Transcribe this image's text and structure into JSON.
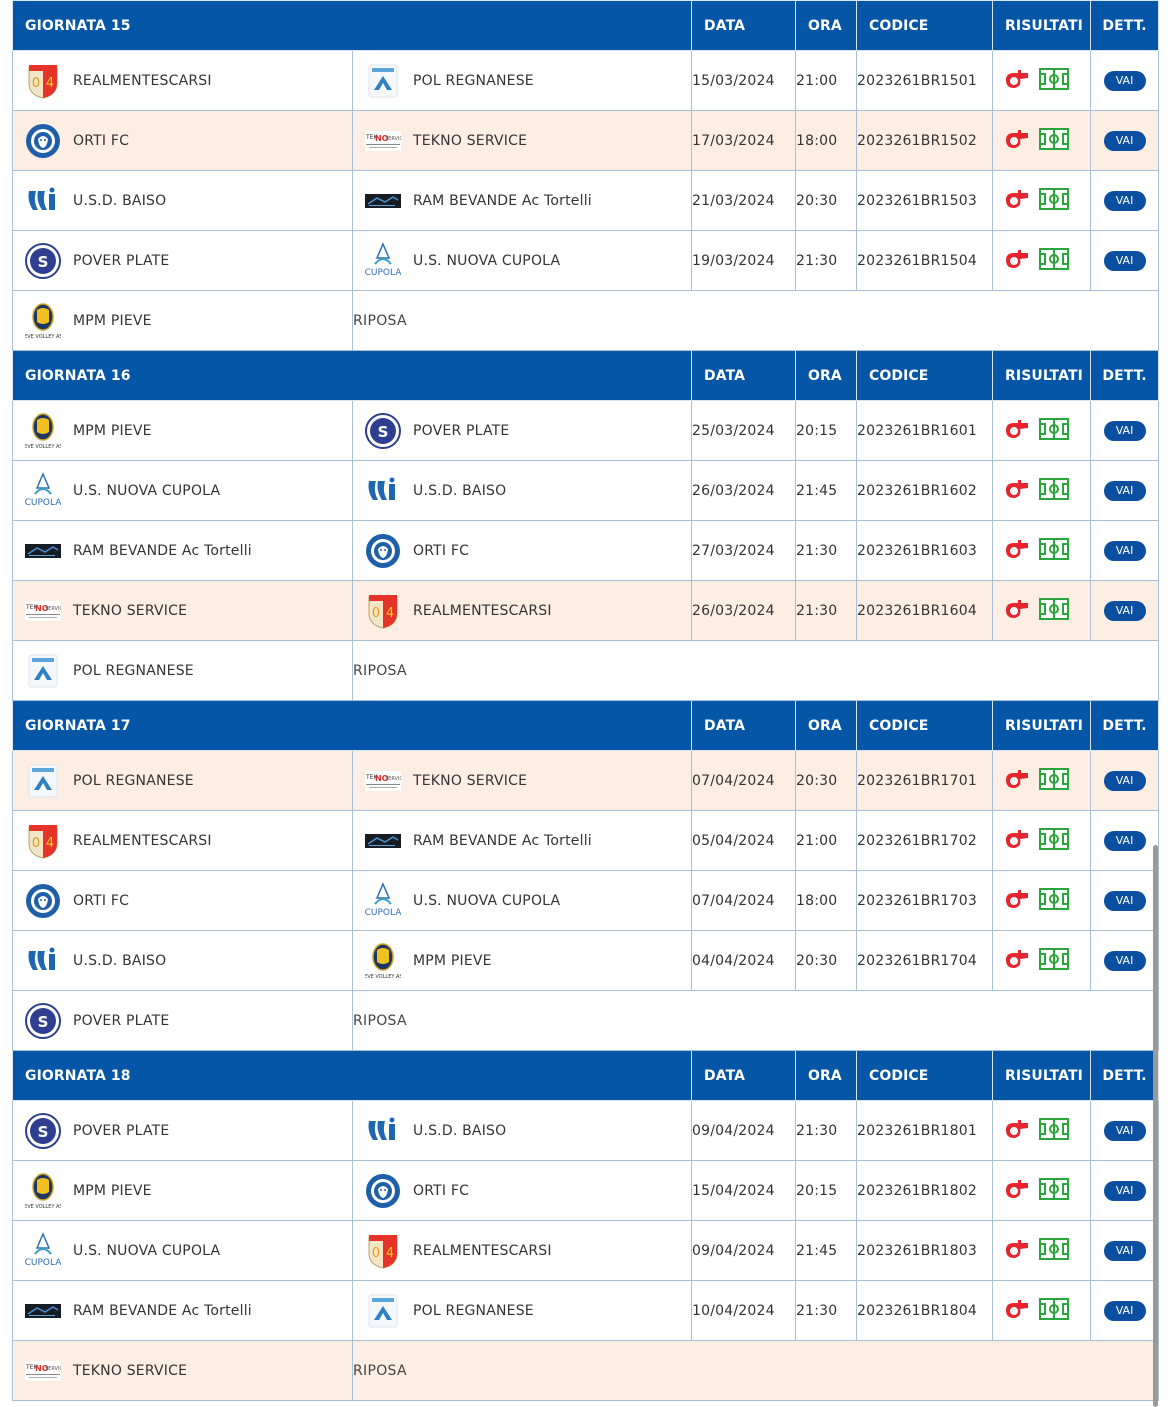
{
  "colors": {
    "header_bg": "#0556a7",
    "highlight_row": "#fdeee4",
    "vai_button": "#0b4fa0",
    "whistle_red": "#e8252f",
    "field_green": "#2aa53a"
  },
  "columns": {
    "data": "DATA",
    "ora": "ORA",
    "codice": "CODICE",
    "risultati": "RISULTATI",
    "dett": "DETT."
  },
  "rest_label": "RIPOSA",
  "vai_label": "VAI",
  "rounds": [
    {
      "title": "GIORNATA 15",
      "matches": [
        {
          "home": "REALMENTESCARSI",
          "home_logo": "realmentescarsi-logo",
          "away": "POL REGNANESE",
          "away_logo": "regnanese-logo",
          "data": "15/03/2024",
          "ora": "21:00",
          "codice": "2023261BR1501",
          "highlight": false
        },
        {
          "home": "ORTI FC",
          "home_logo": "orti-logo",
          "away": "TEKNO SERVICE",
          "away_logo": "tekno-logo",
          "data": "17/03/2024",
          "ora": "18:00",
          "codice": "2023261BR1502",
          "highlight": true
        },
        {
          "home": "U.S.D. BAISO",
          "home_logo": "baiso-logo",
          "away": "RAM BEVANDE Ac Tortelli",
          "away_logo": "ram-logo",
          "data": "21/03/2024",
          "ora": "20:30",
          "codice": "2023261BR1503",
          "highlight": false
        },
        {
          "home": "POVER PLATE",
          "home_logo": "pover-logo",
          "away": "U.S. NUOVA CUPOLA",
          "away_logo": "cupola-logo",
          "data": "19/03/2024",
          "ora": "21:30",
          "codice": "2023261BR1504",
          "highlight": false
        }
      ],
      "rest": {
        "team": "MPM PIEVE",
        "logo": "mpm-logo",
        "highlight": false
      }
    },
    {
      "title": "GIORNATA 16",
      "matches": [
        {
          "home": "MPM PIEVE",
          "home_logo": "mpm-logo",
          "away": "POVER PLATE",
          "away_logo": "pover-logo",
          "data": "25/03/2024",
          "ora": "20:15",
          "codice": "2023261BR1601",
          "highlight": false
        },
        {
          "home": "U.S. NUOVA CUPOLA",
          "home_logo": "cupola-logo",
          "away": "U.S.D. BAISO",
          "away_logo": "baiso-logo",
          "data": "26/03/2024",
          "ora": "21:45",
          "codice": "2023261BR1602",
          "highlight": false
        },
        {
          "home": "RAM BEVANDE Ac Tortelli",
          "home_logo": "ram-logo",
          "away": "ORTI FC",
          "away_logo": "orti-logo",
          "data": "27/03/2024",
          "ora": "21:30",
          "codice": "2023261BR1603",
          "highlight": false
        },
        {
          "home": "TEKNO SERVICE",
          "home_logo": "tekno-logo",
          "away": "REALMENTESCARSI",
          "away_logo": "realmentescarsi-logo",
          "data": "26/03/2024",
          "ora": "21:30",
          "codice": "2023261BR1604",
          "highlight": true
        }
      ],
      "rest": {
        "team": "POL REGNANESE",
        "logo": "regnanese-logo",
        "highlight": false
      }
    },
    {
      "title": "GIORNATA 17",
      "matches": [
        {
          "home": "POL REGNANESE",
          "home_logo": "regnanese-logo",
          "away": "TEKNO SERVICE",
          "away_logo": "tekno-logo",
          "data": "07/04/2024",
          "ora": "20:30",
          "codice": "2023261BR1701",
          "highlight": true
        },
        {
          "home": "REALMENTESCARSI",
          "home_logo": "realmentescarsi-logo",
          "away": "RAM BEVANDE Ac Tortelli",
          "away_logo": "ram-logo",
          "data": "05/04/2024",
          "ora": "21:00",
          "codice": "2023261BR1702",
          "highlight": false
        },
        {
          "home": "ORTI FC",
          "home_logo": "orti-logo",
          "away": "U.S. NUOVA CUPOLA",
          "away_logo": "cupola-logo",
          "data": "07/04/2024",
          "ora": "18:00",
          "codice": "2023261BR1703",
          "highlight": false
        },
        {
          "home": "U.S.D. BAISO",
          "home_logo": "baiso-logo",
          "away": "MPM PIEVE",
          "away_logo": "mpm-logo",
          "data": "04/04/2024",
          "ora": "20:30",
          "codice": "2023261BR1704",
          "highlight": false
        }
      ],
      "rest": {
        "team": "POVER PLATE",
        "logo": "pover-logo",
        "highlight": false
      }
    },
    {
      "title": "GIORNATA 18",
      "matches": [
        {
          "home": "POVER PLATE",
          "home_logo": "pover-logo",
          "away": "U.S.D. BAISO",
          "away_logo": "baiso-logo",
          "data": "09/04/2024",
          "ora": "21:30",
          "codice": "2023261BR1801",
          "highlight": false
        },
        {
          "home": "MPM PIEVE",
          "home_logo": "mpm-logo",
          "away": "ORTI FC",
          "away_logo": "orti-logo",
          "data": "15/04/2024",
          "ora": "20:15",
          "codice": "2023261BR1802",
          "highlight": false
        },
        {
          "home": "U.S. NUOVA CUPOLA",
          "home_logo": "cupola-logo",
          "away": "REALMENTESCARSI",
          "away_logo": "realmentescarsi-logo",
          "data": "09/04/2024",
          "ora": "21:45",
          "codice": "2023261BR1803",
          "highlight": false
        },
        {
          "home": "RAM BEVANDE Ac Tortelli",
          "home_logo": "ram-logo",
          "away": "POL REGNANESE",
          "away_logo": "regnanese-logo",
          "data": "10/04/2024",
          "ora": "21:30",
          "codice": "2023261BR1804",
          "highlight": false
        }
      ],
      "rest": {
        "team": "TEKNO SERVICE",
        "logo": "tekno-logo",
        "highlight": true
      }
    }
  ]
}
